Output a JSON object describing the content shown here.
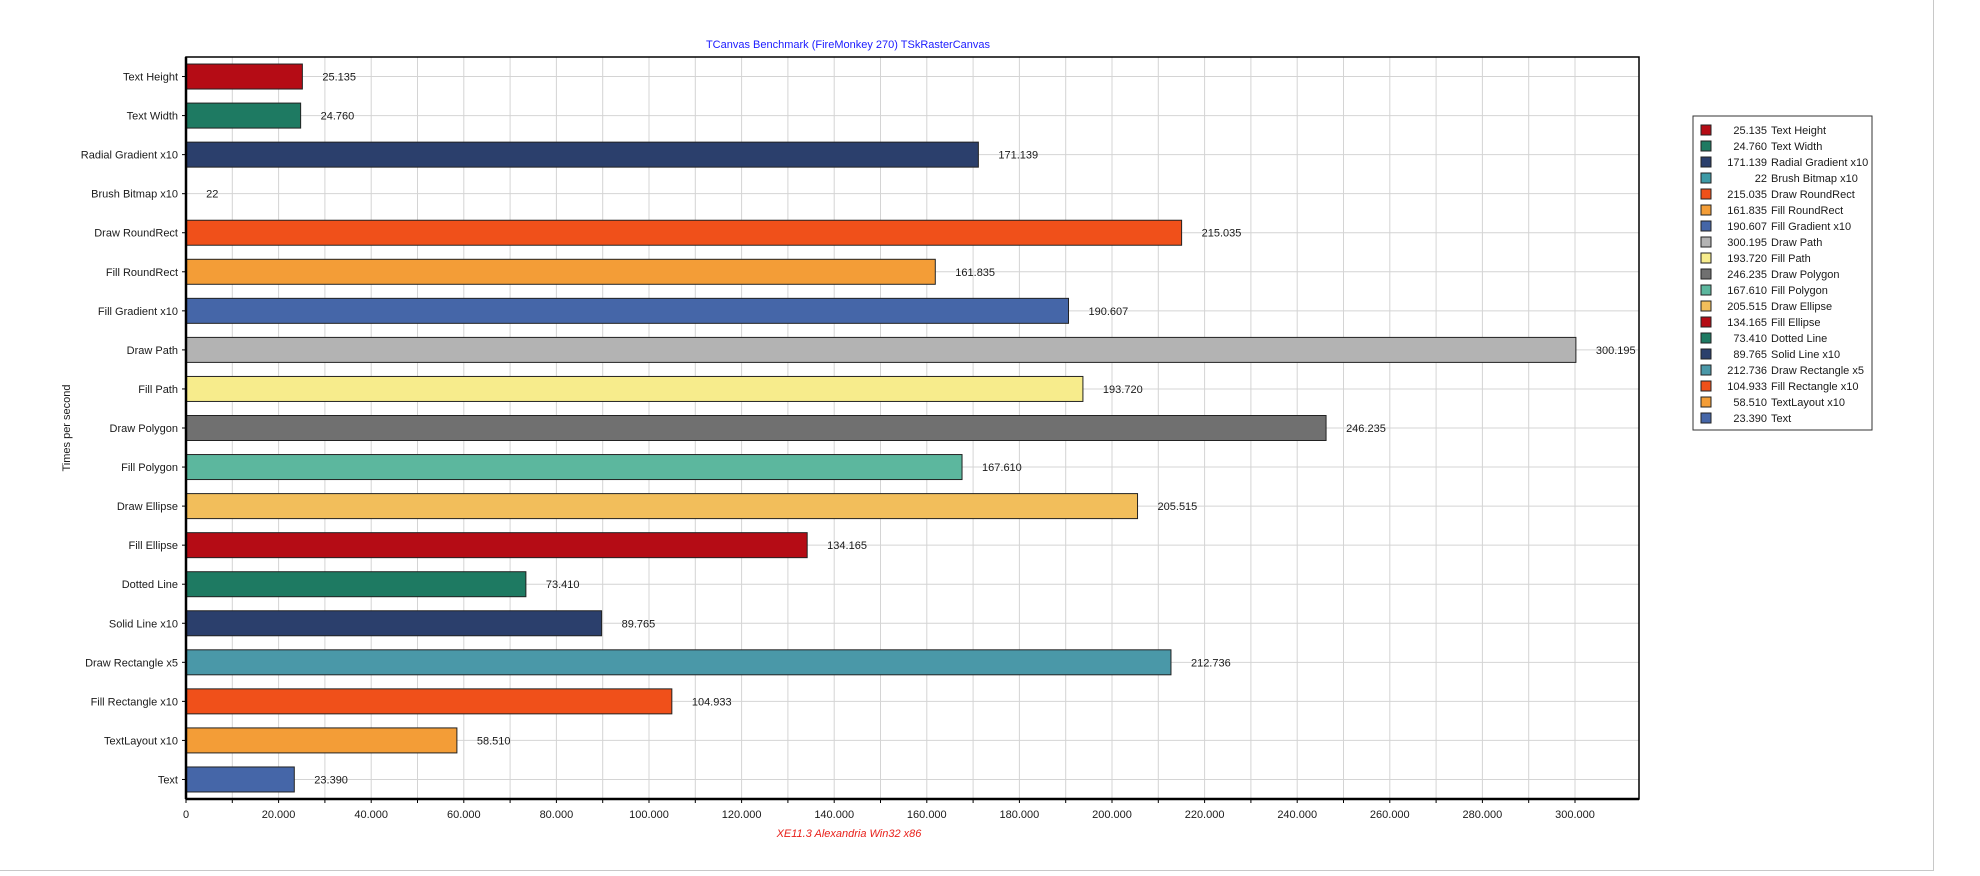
{
  "chart_data": {
    "type": "bar",
    "orientation": "horizontal",
    "title": "TCanvas Benchmark (FireMonkey 270) TSkRasterCanvas",
    "xlabel": "XE11.3 Alexandria Win32 x86",
    "ylabel": "Times per second",
    "xlim": [
      0,
      300000
    ],
    "x_ticks": [
      "0",
      "20.000",
      "40.000",
      "60.000",
      "80.000",
      "100.000",
      "120.000",
      "140.000",
      "160.000",
      "180.000",
      "200.000",
      "220.000",
      "240.000",
      "260.000",
      "280.000",
      "300.000"
    ],
    "grid": true,
    "legend_position": "right",
    "categories": [
      "Text Height",
      "Text Width",
      "Radial Gradient x10",
      "Brush Bitmap x10",
      "Draw RoundRect",
      "Fill RoundRect",
      "Fill Gradient x10",
      "Draw Path",
      "Fill Path",
      "Draw Polygon",
      "Fill Polygon",
      "Draw Ellipse",
      "Fill Ellipse",
      "Dotted Line",
      "Solid Line x10",
      "Draw Rectangle x5",
      "Fill Rectangle x10",
      "TextLayout x10",
      "Text"
    ],
    "values": [
      25135,
      24760,
      171139,
      22,
      215035,
      161835,
      190607,
      300195,
      193720,
      246235,
      167610,
      205515,
      134165,
      73410,
      89765,
      212736,
      104933,
      58510,
      23390
    ],
    "value_labels": [
      "25.135",
      "24.760",
      "171.139",
      "22",
      "215.035",
      "161.835",
      "190.607",
      "300.195",
      "193.720",
      "246.235",
      "167.610",
      "205.515",
      "134.165",
      "73.410",
      "89.765",
      "212.736",
      "104.933",
      "58.510",
      "23.390"
    ],
    "colors": [
      "#b50c15",
      "#1e7a62",
      "#2b3f6c",
      "#3d9aa6",
      "#f0501a",
      "#f39d37",
      "#4566a8",
      "#b3b3b3",
      "#f7ec8c",
      "#707070",
      "#5cb79e",
      "#f2be5b",
      "#b50c15",
      "#1e7a62",
      "#2b3f6c",
      "#4a98a8",
      "#f0501a",
      "#f39d37",
      "#4566a8"
    ],
    "legend": [
      "25.135 Text Height",
      "24.760 Text Width",
      "171.139 Radial Gradient x10",
      "22 Brush Bitmap x10",
      "215.035 Draw RoundRect",
      "161.835 Fill RoundRect",
      "190.607 Fill Gradient x10",
      "300.195 Draw Path",
      "193.720 Fill Path",
      "246.235 Draw Polygon",
      "167.610 Fill Polygon",
      "205.515 Draw Ellipse",
      "134.165 Fill Ellipse",
      "73.410 Dotted Line",
      "89.765 Solid Line x10",
      "212.736 Draw Rectangle x5",
      "104.933 Fill Rectangle x10",
      "58.510 TextLayout x10",
      "23.390 Text"
    ]
  },
  "theme": {
    "title_color": "#1a1aff",
    "xlabel_color": "#e8201a",
    "text_color": "#1a1a1a",
    "grid_color": "#d4d4d4",
    "axis_color": "#000000",
    "bar_stroke": "#222222"
  }
}
